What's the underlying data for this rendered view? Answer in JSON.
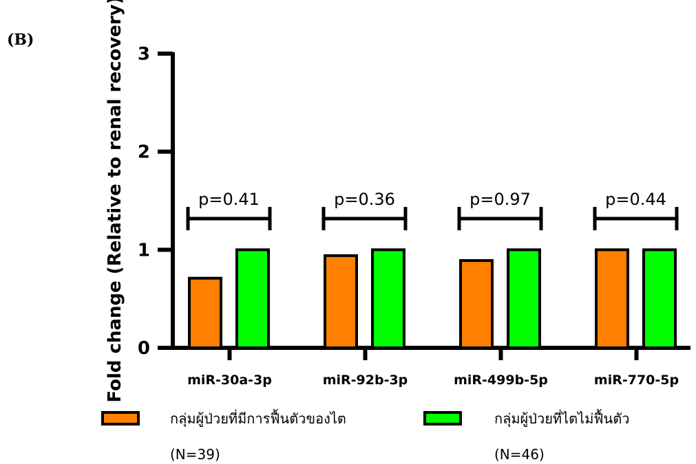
{
  "panel_label": "(B)",
  "chart_data": {
    "type": "bar",
    "title": "",
    "xlabel": "",
    "ylabel": "Fold change (Relative to renal recovery)",
    "ylim": [
      0,
      3
    ],
    "yticks": [
      0,
      1,
      2,
      3
    ],
    "categories": [
      "miR-30a-3p",
      "miR-92b-3p",
      "miR-499b-5p",
      "miR-770-5p"
    ],
    "series": [
      {
        "name": "กลุ่มผู้ป่วยที่มีการฟื้นตัวของไต",
        "n_label": "(N=39)",
        "color": "#ff8000",
        "values": [
          0.71,
          0.94,
          0.89,
          1.0
        ]
      },
      {
        "name": "กลุ่มผู้ป่วยที่ไตไม่ฟื้นตัว",
        "n_label": "(N=46)",
        "color": "#00ff00",
        "values": [
          1.0,
          1.0,
          1.0,
          1.0
        ]
      }
    ],
    "annotations": [
      "p=0.41",
      "p=0.36",
      "p=0.97",
      "p=0.44"
    ],
    "grid": false,
    "legend_position": "bottom"
  }
}
